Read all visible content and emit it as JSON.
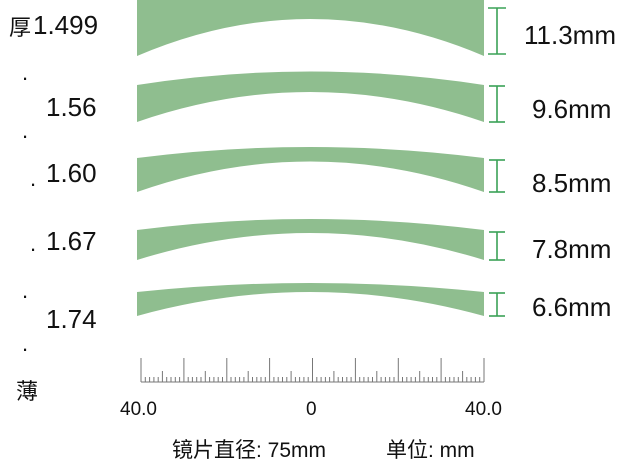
{
  "labels": {
    "thick": "厚",
    "thin": "薄"
  },
  "lenses": [
    {
      "index": "1.499",
      "thickness": "11.3mm"
    },
    {
      "index": "1.56",
      "thickness": "9.6mm"
    },
    {
      "index": "1.60",
      "thickness": "8.5mm"
    },
    {
      "index": "1.67",
      "thickness": "7.8mm"
    },
    {
      "index": "1.74",
      "thickness": "6.6mm"
    }
  ],
  "dots": [
    ".",
    ".",
    ".",
    ".",
    ".",
    "."
  ],
  "ruler": {
    "left": "40.0",
    "center": "0",
    "right": "40.0"
  },
  "caption": {
    "diameter": "镜片直径: 75mm",
    "unit": "单位: mm"
  },
  "colors": {
    "lens_fill": "#8fbe8f",
    "bracket": "#3aa257",
    "ruler": "#777777"
  }
}
